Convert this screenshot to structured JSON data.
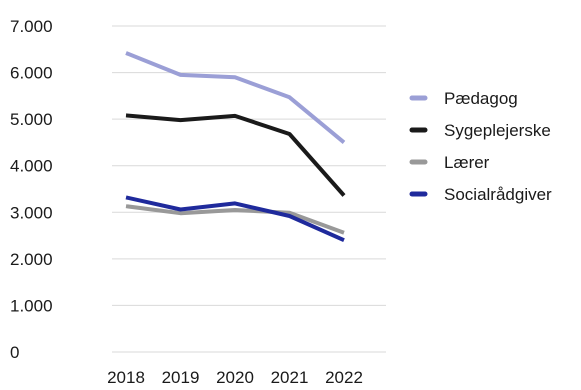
{
  "chart_data": {
    "type": "line",
    "x": [
      "2018",
      "2019",
      "2020",
      "2021",
      "2022"
    ],
    "ylim": [
      0,
      7000
    ],
    "yticks": [
      "0",
      "1.000",
      "2.000",
      "3.000",
      "4.000",
      "5.000",
      "6.000",
      "7.000"
    ],
    "grid": true,
    "legend_position": "right",
    "series": [
      {
        "name": "Pædagog",
        "color": "#9b9fd6",
        "values": [
          6420,
          5950,
          5900,
          5470,
          4500
        ]
      },
      {
        "name": "Sygeplejerske",
        "color": "#1a1a1a",
        "values": [
          5080,
          4980,
          5070,
          4680,
          3360
        ]
      },
      {
        "name": "Lærer",
        "color": "#999999",
        "values": [
          3130,
          2980,
          3050,
          2990,
          2560
        ]
      },
      {
        "name": "Socialrådgiver",
        "color": "#1f2a9c",
        "values": [
          3320,
          3060,
          3190,
          2920,
          2400
        ]
      }
    ]
  }
}
